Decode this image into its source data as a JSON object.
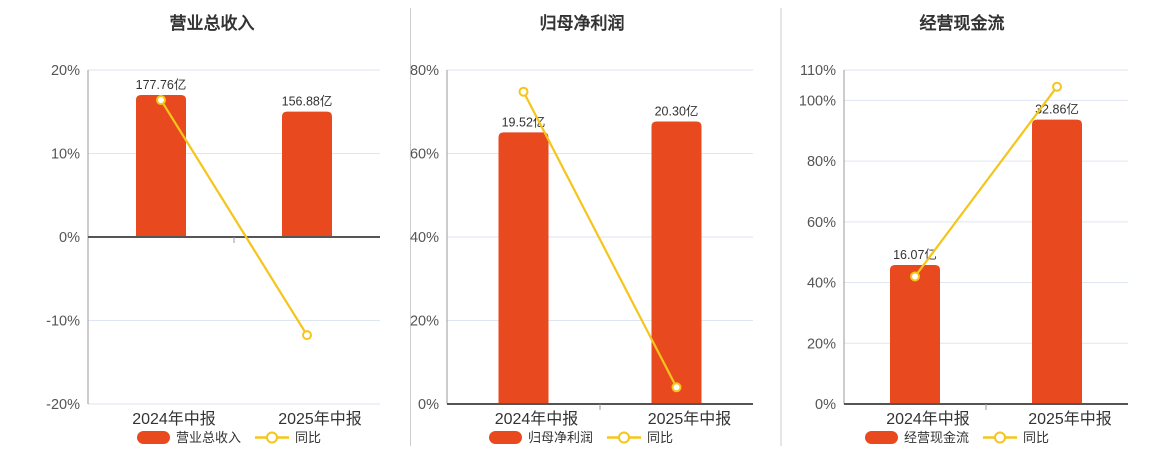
{
  "colors": {
    "bar": "#e8491e",
    "line": "#f5c51b",
    "marker_fill": "#ffffff",
    "grid": "#dee6f2",
    "axis_line": "#999999",
    "zero_axis": "#555555",
    "tick_text": "#555555",
    "label_text": "#333333",
    "divider": "#cccccc",
    "background": "#ffffff"
  },
  "chart_data": [
    {
      "type": "bar",
      "title": "营业总收入",
      "categories": [
        "2024年中报",
        "2025年中报"
      ],
      "series": [
        {
          "name": "营业总收入",
          "type": "bar",
          "unit": "亿",
          "values_yi": [
            177.76,
            156.88
          ],
          "labels": [
            "177.76亿",
            "156.88亿"
          ]
        },
        {
          "name": "同比",
          "type": "line",
          "values_pct": [
            16.4,
            -11.75
          ]
        }
      ],
      "y_axis": {
        "min": -20,
        "max": 20,
        "tick_values": [
          20,
          10,
          0,
          -10,
          -20
        ],
        "tick_labels": [
          "20%",
          "10%",
          "0%",
          "-10%",
          "-20%"
        ]
      },
      "legend": [
        "营业总收入",
        "同比"
      ],
      "grid": true,
      "legend_position": "bottom"
    },
    {
      "type": "bar",
      "title": "归母净利润",
      "categories": [
        "2024年中报",
        "2025年中报"
      ],
      "series": [
        {
          "name": "归母净利润",
          "type": "bar",
          "unit": "亿",
          "values_yi": [
            19.52,
            20.3
          ],
          "labels": [
            "19.52亿",
            "20.30亿"
          ]
        },
        {
          "name": "同比",
          "type": "line",
          "values_pct": [
            74.8,
            4.0
          ]
        }
      ],
      "y_axis": {
        "min": 0,
        "max": 80,
        "tick_values": [
          80,
          60,
          40,
          20,
          0
        ],
        "tick_labels": [
          "80%",
          "60%",
          "40%",
          "20%",
          "0%"
        ]
      },
      "legend": [
        "归母净利润",
        "同比"
      ],
      "grid": true,
      "legend_position": "bottom"
    },
    {
      "type": "bar",
      "title": "经营现金流",
      "categories": [
        "2024年中报",
        "2025年中报"
      ],
      "series": [
        {
          "name": "经营现金流",
          "type": "bar",
          "unit": "亿",
          "values_yi": [
            16.07,
            32.86
          ],
          "labels": [
            "16.07亿",
            "32.86亿"
          ]
        },
        {
          "name": "同比",
          "type": "line",
          "values_pct": [
            42.0,
            104.5
          ]
        }
      ],
      "y_axis": {
        "min": 0,
        "max": 110,
        "tick_values": [
          110,
          100,
          80,
          60,
          40,
          20,
          0
        ],
        "tick_labels": [
          "110%",
          "100%",
          "80%",
          "60%",
          "40%",
          "20%",
          "0%"
        ]
      },
      "legend": [
        "经营现金流",
        "同比"
      ],
      "grid": true,
      "legend_position": "bottom"
    }
  ]
}
